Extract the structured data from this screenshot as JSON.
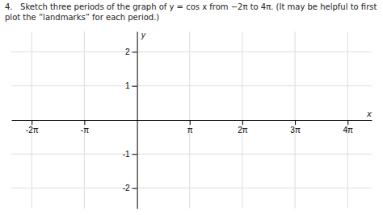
{
  "chart_data": {
    "type": "line",
    "title": "4.   Sketch three periods of the graph of y = cos x from −2π to 4π. (It may be helpful to first",
    "subtitle": "plot the “landmarks” for each period.)",
    "x_label": "x",
    "y_label": "y",
    "xlim": [
      -7.5,
      14.0
    ],
    "ylim": [
      -2.6,
      2.6
    ],
    "xticks": [
      {
        "value": -6.283185307,
        "label": "-2π"
      },
      {
        "value": -3.141592654,
        "label": "-π"
      },
      {
        "value": 3.141592654,
        "label": "π"
      },
      {
        "value": 6.283185307,
        "label": "2π"
      },
      {
        "value": 9.424777961,
        "label": "3π"
      },
      {
        "value": 12.566370614,
        "label": "4π"
      }
    ],
    "yticks": [
      -2,
      -1,
      1,
      2
    ],
    "grid": true
  }
}
